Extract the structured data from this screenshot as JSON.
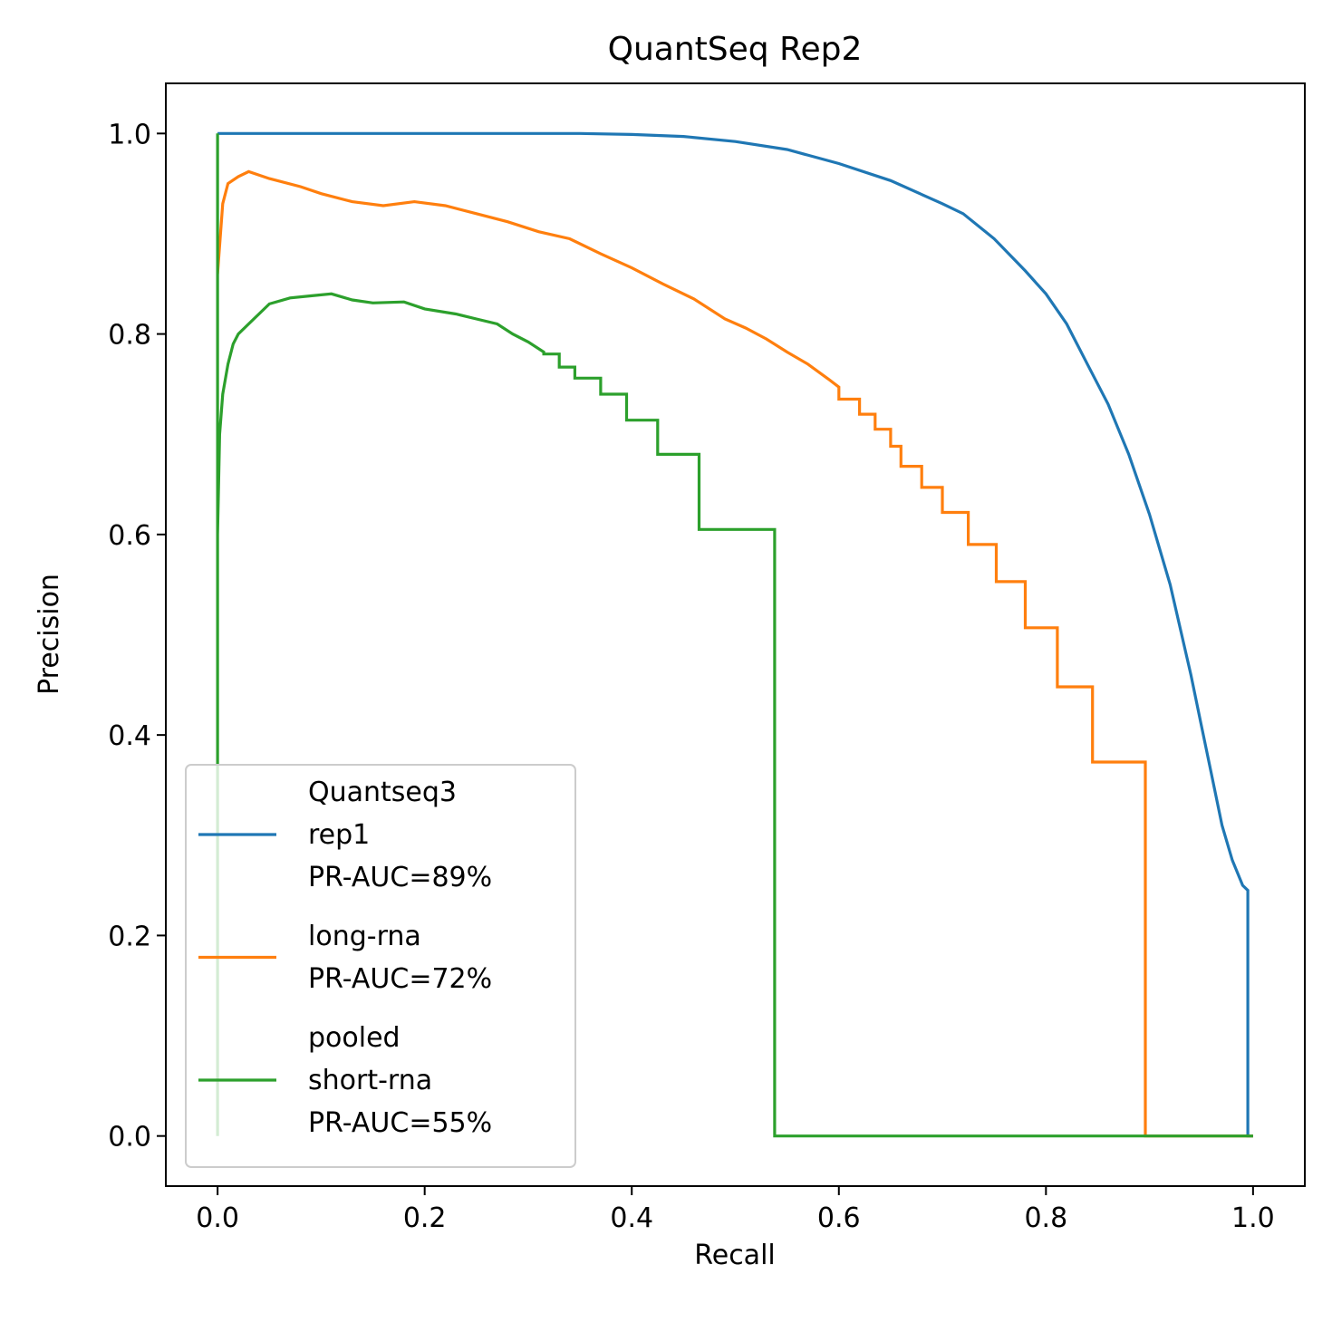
{
  "chart_data": {
    "type": "line",
    "title": "QuantSeq Rep2",
    "xlabel": "Recall",
    "ylabel": "Precision",
    "xlim": [
      -0.05,
      1.05
    ],
    "ylim": [
      -0.05,
      1.05
    ],
    "xticks": [
      0.0,
      0.2,
      0.4,
      0.6,
      0.8,
      1.0
    ],
    "yticks": [
      0.0,
      0.2,
      0.4,
      0.6,
      0.8,
      1.0
    ],
    "xtick_labels": [
      "0.0",
      "0.2",
      "0.4",
      "0.6",
      "0.8",
      "1.0"
    ],
    "ytick_labels": [
      "0.0",
      "0.2",
      "0.4",
      "0.6",
      "0.8",
      "1.0"
    ],
    "grid": false,
    "legend_position": "lower-left",
    "series": [
      {
        "name": "Quantseq3 rep1 PR-AUC=89%",
        "legend_lines": [
          "Quantseq3",
          "rep1",
          "PR-AUC=89%"
        ],
        "color": "#1f77b4",
        "step": false,
        "points": [
          [
            0.0,
            1.0
          ],
          [
            0.1,
            1.0
          ],
          [
            0.2,
            1.0
          ],
          [
            0.3,
            1.0
          ],
          [
            0.35,
            1.0
          ],
          [
            0.4,
            0.999
          ],
          [
            0.45,
            0.997
          ],
          [
            0.5,
            0.992
          ],
          [
            0.55,
            0.984
          ],
          [
            0.6,
            0.97
          ],
          [
            0.65,
            0.953
          ],
          [
            0.7,
            0.93
          ],
          [
            0.72,
            0.92
          ],
          [
            0.75,
            0.895
          ],
          [
            0.78,
            0.863
          ],
          [
            0.8,
            0.84
          ],
          [
            0.82,
            0.81
          ],
          [
            0.84,
            0.77
          ],
          [
            0.86,
            0.73
          ],
          [
            0.88,
            0.68
          ],
          [
            0.9,
            0.62
          ],
          [
            0.92,
            0.55
          ],
          [
            0.94,
            0.46
          ],
          [
            0.95,
            0.41
          ],
          [
            0.96,
            0.36
          ],
          [
            0.97,
            0.31
          ],
          [
            0.98,
            0.275
          ],
          [
            0.99,
            0.25
          ],
          [
            0.995,
            0.245
          ],
          [
            0.995,
            0.0
          ],
          [
            1.0,
            0.0
          ]
        ]
      },
      {
        "name": "long-rna PR-AUC=72%",
        "legend_lines": [
          "long-rna",
          "PR-AUC=72%"
        ],
        "color": "#ff7f0e",
        "step": false,
        "points": [
          [
            0.0,
            0.86
          ],
          [
            0.005,
            0.93
          ],
          [
            0.01,
            0.95
          ],
          [
            0.02,
            0.957
          ],
          [
            0.03,
            0.962
          ],
          [
            0.05,
            0.955
          ],
          [
            0.08,
            0.947
          ],
          [
            0.1,
            0.94
          ],
          [
            0.13,
            0.932
          ],
          [
            0.16,
            0.928
          ],
          [
            0.19,
            0.932
          ],
          [
            0.22,
            0.928
          ],
          [
            0.25,
            0.92
          ],
          [
            0.28,
            0.912
          ],
          [
            0.31,
            0.902
          ],
          [
            0.34,
            0.895
          ],
          [
            0.37,
            0.88
          ],
          [
            0.4,
            0.866
          ],
          [
            0.43,
            0.85
          ],
          [
            0.46,
            0.835
          ],
          [
            0.49,
            0.815
          ],
          [
            0.51,
            0.806
          ],
          [
            0.53,
            0.795
          ],
          [
            0.55,
            0.782
          ],
          [
            0.57,
            0.77
          ],
          [
            0.59,
            0.755
          ],
          [
            0.6,
            0.747
          ],
          [
            0.6,
            0.735
          ],
          [
            0.62,
            0.735
          ],
          [
            0.62,
            0.72
          ],
          [
            0.635,
            0.72
          ],
          [
            0.635,
            0.705
          ],
          [
            0.65,
            0.705
          ],
          [
            0.65,
            0.688
          ],
          [
            0.66,
            0.688
          ],
          [
            0.66,
            0.668
          ],
          [
            0.68,
            0.668
          ],
          [
            0.68,
            0.647
          ],
          [
            0.7,
            0.647
          ],
          [
            0.7,
            0.622
          ],
          [
            0.725,
            0.622
          ],
          [
            0.725,
            0.59
          ],
          [
            0.752,
            0.59
          ],
          [
            0.752,
            0.553
          ],
          [
            0.78,
            0.553
          ],
          [
            0.78,
            0.507
          ],
          [
            0.811,
            0.507
          ],
          [
            0.811,
            0.448
          ],
          [
            0.845,
            0.448
          ],
          [
            0.845,
            0.373
          ],
          [
            0.896,
            0.373
          ],
          [
            0.896,
            0.0
          ],
          [
            1.0,
            0.0
          ]
        ]
      },
      {
        "name": "pooled short-rna PR-AUC=55%",
        "legend_lines": [
          "pooled",
          "short-rna",
          "PR-AUC=55%"
        ],
        "color": "#2ca02c",
        "step": false,
        "points": [
          [
            0.0,
            1.0
          ],
          [
            0.0,
            0.0
          ],
          [
            0.0,
            0.6
          ],
          [
            0.002,
            0.7
          ],
          [
            0.005,
            0.74
          ],
          [
            0.01,
            0.77
          ],
          [
            0.015,
            0.79
          ],
          [
            0.02,
            0.8
          ],
          [
            0.03,
            0.81
          ],
          [
            0.04,
            0.82
          ],
          [
            0.05,
            0.83
          ],
          [
            0.07,
            0.836
          ],
          [
            0.09,
            0.838
          ],
          [
            0.11,
            0.84
          ],
          [
            0.13,
            0.834
          ],
          [
            0.15,
            0.831
          ],
          [
            0.18,
            0.832
          ],
          [
            0.2,
            0.825
          ],
          [
            0.23,
            0.82
          ],
          [
            0.25,
            0.815
          ],
          [
            0.27,
            0.81
          ],
          [
            0.285,
            0.8
          ],
          [
            0.3,
            0.792
          ],
          [
            0.315,
            0.782
          ],
          [
            0.315,
            0.78
          ],
          [
            0.33,
            0.78
          ],
          [
            0.33,
            0.767
          ],
          [
            0.345,
            0.767
          ],
          [
            0.345,
            0.756
          ],
          [
            0.37,
            0.756
          ],
          [
            0.37,
            0.74
          ],
          [
            0.395,
            0.74
          ],
          [
            0.395,
            0.714
          ],
          [
            0.425,
            0.714
          ],
          [
            0.425,
            0.68
          ],
          [
            0.465,
            0.68
          ],
          [
            0.465,
            0.605
          ],
          [
            0.538,
            0.605
          ],
          [
            0.538,
            0.0
          ],
          [
            1.0,
            0.0
          ]
        ]
      }
    ]
  }
}
